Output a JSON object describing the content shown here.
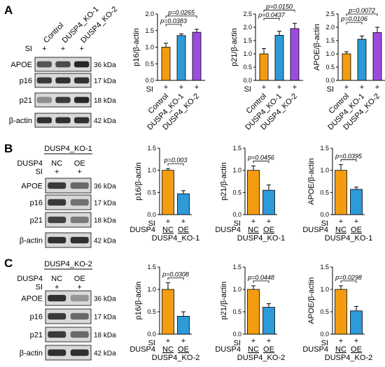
{
  "panel_labels": [
    "A",
    "B",
    "C"
  ],
  "colors": {
    "control": "#F39C12",
    "ko1": "#2E9AD8",
    "ko2": "#9B4BE0",
    "nc": "#F39C12",
    "oe": "#2E9AD8",
    "blot_bg": "#D8D8D8",
    "band": "#1E1E1E"
  },
  "blots": [
    {
      "header": "",
      "lane_labels": [
        "Control",
        "DUSP4_KO-1",
        "DUSP4_KO-2"
      ],
      "condition_rows": [
        {
          "label": "SI",
          "values": [
            "+",
            "+",
            "+"
          ]
        }
      ],
      "bands": [
        {
          "protein": "APOE",
          "kda": "36 kDa",
          "intensity": [
            0.7,
            0.75,
            0.95
          ]
        },
        {
          "protein": "p16",
          "kda": "17 kDa",
          "intensity": [
            0.85,
            0.9,
            0.9
          ]
        },
        {
          "protein": "p21",
          "kda": "18 kDa",
          "intensity": [
            0.4,
            0.85,
            0.95
          ]
        },
        {
          "protein": "β-actin",
          "kda": "42 kDa",
          "intensity": [
            0.9,
            0.9,
            0.9
          ]
        }
      ]
    },
    {
      "header": "DUSP4_KO-1",
      "lane_labels": [],
      "condition_rows": [
        {
          "label": "DUSP4",
          "values": [
            "NC",
            "OE"
          ]
        },
        {
          "label": "SI",
          "values": [
            "+",
            "+"
          ]
        }
      ],
      "bands": [
        {
          "protein": "APOE",
          "kda": "36 kDa",
          "intensity": [
            0.85,
            0.6
          ]
        },
        {
          "protein": "p16",
          "kda": "17 kDa",
          "intensity": [
            0.85,
            0.55
          ]
        },
        {
          "protein": "p21",
          "kda": "18 kDa",
          "intensity": [
            0.8,
            0.5
          ]
        },
        {
          "protein": "β-actin",
          "kda": "42 kDa",
          "intensity": [
            0.9,
            0.9
          ]
        }
      ]
    },
    {
      "header": "DUSP4_KO-2",
      "lane_labels": [],
      "condition_rows": [
        {
          "label": "DUSP4",
          "values": [
            "NC",
            "OE"
          ]
        },
        {
          "label": "SI",
          "values": [
            "+",
            "+"
          ]
        }
      ],
      "bands": [
        {
          "protein": "APOE",
          "kda": "36 kDa",
          "intensity": [
            0.9,
            0.35
          ]
        },
        {
          "protein": "p16",
          "kda": "17 kDa",
          "intensity": [
            0.85,
            0.6
          ]
        },
        {
          "protein": "p21",
          "kda": "18 kDa",
          "intensity": [
            0.85,
            0.6
          ]
        },
        {
          "protein": "β-actin",
          "kda": "42 kDa",
          "intensity": [
            0.9,
            0.9
          ]
        }
      ]
    }
  ],
  "chart_data": [
    {
      "type": "bar",
      "panel": "A",
      "ylabel": "p16/β-actin",
      "ylim": [
        0,
        2
      ],
      "yticks": [
        "0.0",
        "0.5",
        "1.0",
        "1.5",
        "2.0"
      ],
      "categories": [
        "Control",
        "DUSP4_KO-1",
        "DUSP4_KO-2"
      ],
      "values": [
        1.0,
        1.35,
        1.45
      ],
      "errors": [
        0.12,
        0.05,
        0.09
      ],
      "colors": [
        "#F39C12",
        "#2E9AD8",
        "#9B4BE0"
      ],
      "si_row": [
        "+",
        "+",
        "+"
      ],
      "row_labels": [
        "SI"
      ],
      "pvalues": [
        {
          "from": 0,
          "to": 1,
          "text": "p=0.0383"
        },
        {
          "from": 0,
          "to": 2,
          "text": "p=0.0265"
        }
      ]
    },
    {
      "type": "bar",
      "panel": "A",
      "ylabel": "p21/β-actin",
      "ylim": [
        0,
        2.5
      ],
      "yticks": [
        "0.0",
        "0.5",
        "1.0",
        "1.5",
        "2.0",
        "2.5"
      ],
      "categories": [
        "Control",
        "DUSP4_KO-1",
        "DUSP4_KO-2"
      ],
      "values": [
        1.0,
        1.7,
        1.95
      ],
      "errors": [
        0.2,
        0.15,
        0.2
      ],
      "colors": [
        "#F39C12",
        "#2E9AD8",
        "#9B4BE0"
      ],
      "si_row": [
        "+",
        "+",
        "+"
      ],
      "row_labels": [
        "SI"
      ],
      "pvalues": [
        {
          "from": 0,
          "to": 1,
          "text": "p=0.0437"
        },
        {
          "from": 0,
          "to": 2,
          "text": "p=0.0150"
        }
      ]
    },
    {
      "type": "bar",
      "panel": "A",
      "ylabel": "APOE/β-actin",
      "ylim": [
        0,
        2.5
      ],
      "yticks": [
        "0.0",
        "0.5",
        "1.0",
        "1.5",
        "2.0",
        "2.5"
      ],
      "categories": [
        "Control",
        "DUSP4_KO-1",
        "DUSP4_KO-2"
      ],
      "values": [
        1.0,
        1.55,
        1.8
      ],
      "errors": [
        0.08,
        0.12,
        0.2
      ],
      "colors": [
        "#F39C12",
        "#2E9AD8",
        "#9B4BE0"
      ],
      "si_row": [
        "+",
        "+",
        "+"
      ],
      "row_labels": [
        "SI"
      ],
      "pvalues": [
        {
          "from": 0,
          "to": 1,
          "text": "p=0.0106"
        },
        {
          "from": 0,
          "to": 2,
          "text": "p=0.0072"
        }
      ]
    },
    {
      "type": "bar",
      "panel": "B",
      "ylabel": "p16/β-actin",
      "ylim": [
        0,
        1.5
      ],
      "yticks": [
        "0.0",
        "0.5",
        "1.0",
        "1.5"
      ],
      "categories": [
        "NC",
        "OE"
      ],
      "values": [
        1.0,
        0.47
      ],
      "errors": [
        0.04,
        0.07
      ],
      "colors": [
        "#F39C12",
        "#2E9AD8"
      ],
      "si_row": [
        "+",
        "+"
      ],
      "row_labels": [
        "SI",
        "DUSP4"
      ],
      "group_label": "DUSP4_KO-1",
      "pvalues": [
        {
          "from": 0,
          "to": 1,
          "text": "p=0.003"
        }
      ]
    },
    {
      "type": "bar",
      "panel": "B",
      "ylabel": "p21/β-actin",
      "ylim": [
        0,
        1.5
      ],
      "yticks": [
        "0.0",
        "0.5",
        "1.0",
        "1.5"
      ],
      "categories": [
        "NC",
        "OE"
      ],
      "values": [
        1.0,
        0.55
      ],
      "errors": [
        0.1,
        0.12
      ],
      "colors": [
        "#F39C12",
        "#2E9AD8"
      ],
      "si_row": [
        "+",
        "+"
      ],
      "row_labels": [
        "SI",
        "DUSP4"
      ],
      "group_label": "DUSP4_KO-1",
      "pvalues": [
        {
          "from": 0,
          "to": 1,
          "text": "p=0.0456"
        }
      ]
    },
    {
      "type": "bar",
      "panel": "B",
      "ylabel": "APOE/β-actin",
      "ylim": [
        0,
        1.5
      ],
      "yticks": [
        "0.0",
        "0.5",
        "1.0",
        "1.5"
      ],
      "categories": [
        "NC",
        "OE"
      ],
      "values": [
        1.0,
        0.57
      ],
      "errors": [
        0.13,
        0.05
      ],
      "colors": [
        "#F39C12",
        "#2E9AD8"
      ],
      "si_row": [
        "+",
        "+"
      ],
      "row_labels": [
        "SI",
        "DUSP4"
      ],
      "group_label": "DUSP4_KO-1",
      "pvalues": [
        {
          "from": 0,
          "to": 1,
          "text": "p=0.0395"
        }
      ]
    },
    {
      "type": "bar",
      "panel": "C",
      "ylabel": "p16/β-actin",
      "ylim": [
        0,
        1.5
      ],
      "yticks": [
        "0.0",
        "0.5",
        "1.0",
        "1.5"
      ],
      "categories": [
        "NC",
        "OE"
      ],
      "values": [
        1.0,
        0.4
      ],
      "errors": [
        0.15,
        0.1
      ],
      "colors": [
        "#F39C12",
        "#2E9AD8"
      ],
      "si_row": [
        "+",
        "+"
      ],
      "row_labels": [
        "SI",
        "DUSP4"
      ],
      "group_label": "DUSP4_KO-2",
      "pvalues": [
        {
          "from": 0,
          "to": 1,
          "text": "p=0.0308"
        }
      ]
    },
    {
      "type": "bar",
      "panel": "C",
      "ylabel": "p21/β-actin",
      "ylim": [
        0,
        1.5
      ],
      "yticks": [
        "0.0",
        "0.5",
        "1.0",
        "1.5"
      ],
      "categories": [
        "NC",
        "OE"
      ],
      "values": [
        1.0,
        0.6
      ],
      "errors": [
        0.08,
        0.08
      ],
      "colors": [
        "#F39C12",
        "#2E9AD8"
      ],
      "si_row": [
        "+",
        "+"
      ],
      "row_labels": [
        "SI",
        "DUSP4"
      ],
      "group_label": "DUSP4_KO-2",
      "pvalues": [
        {
          "from": 0,
          "to": 1,
          "text": "p=0.0448"
        }
      ]
    },
    {
      "type": "bar",
      "panel": "C",
      "ylabel": "APOE/β-actin",
      "ylim": [
        0,
        1.5
      ],
      "yticks": [
        "0.0",
        "0.5",
        "1.0",
        "1.5"
      ],
      "categories": [
        "NC",
        "OE"
      ],
      "values": [
        1.0,
        0.52
      ],
      "errors": [
        0.08,
        0.1
      ],
      "colors": [
        "#F39C12",
        "#2E9AD8"
      ],
      "si_row": [
        "+",
        "+"
      ],
      "row_labels": [
        "SI",
        "DUSP4"
      ],
      "group_label": "DUSP4_KO-2",
      "pvalues": [
        {
          "from": 0,
          "to": 1,
          "text": "p=0.0298"
        }
      ]
    }
  ]
}
